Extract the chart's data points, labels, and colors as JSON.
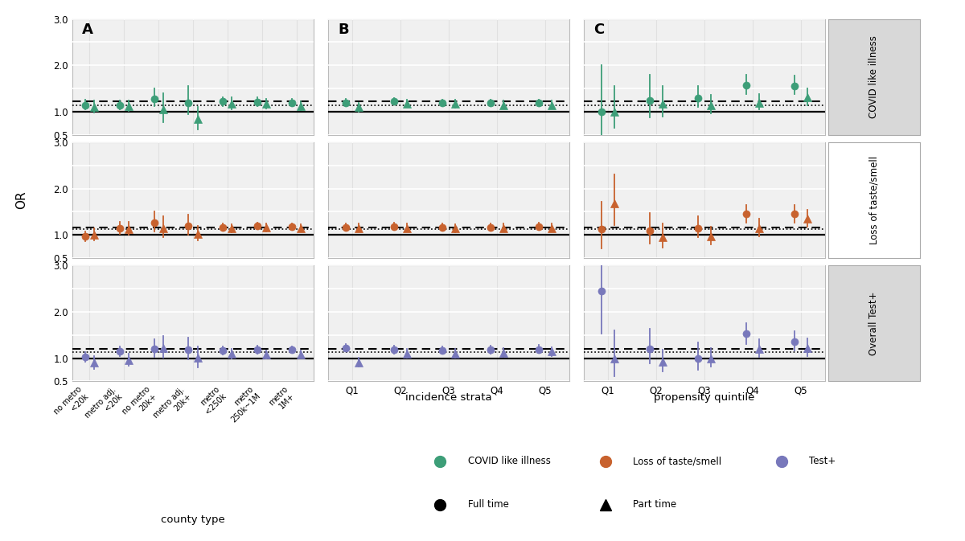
{
  "colors": {
    "green": "#3d9e78",
    "orange": "#c8622e",
    "purple": "#7878bb"
  },
  "dashed_line": {
    "green": 1.22,
    "orange": 1.17,
    "purple": 1.2
  },
  "dotted_line": {
    "green": 1.14,
    "orange": 1.12,
    "purple": 1.13
  },
  "panel_A": {
    "xlabel": "county type",
    "xticks": [
      "no metro\n<20k",
      "metro adj.\n<20k",
      "no metro\n20k+",
      "metro adj.\n20k+",
      "metro\n<250k",
      "metro\n250k~1M",
      "metro\n1M+"
    ],
    "green_full_y": [
      1.15,
      1.14,
      1.28,
      1.2,
      1.22,
      1.21,
      1.2
    ],
    "green_full_lo": [
      1.05,
      1.06,
      1.12,
      0.95,
      1.13,
      1.12,
      1.13
    ],
    "green_full_hi": [
      1.26,
      1.24,
      1.5,
      1.55,
      1.32,
      1.31,
      1.28
    ],
    "green_part_y": [
      1.1,
      1.12,
      1.05,
      0.84,
      1.17,
      1.17,
      1.12
    ],
    "green_part_lo": [
      0.98,
      1.02,
      0.78,
      0.63,
      1.05,
      1.07,
      1.03
    ],
    "green_part_hi": [
      1.24,
      1.24,
      1.4,
      1.1,
      1.31,
      1.28,
      1.22
    ],
    "orange_full_y": [
      0.97,
      1.15,
      1.27,
      1.2,
      1.17,
      1.19,
      1.18
    ],
    "orange_full_lo": [
      0.87,
      1.03,
      1.07,
      1.0,
      1.1,
      1.12,
      1.12
    ],
    "orange_full_hi": [
      1.08,
      1.29,
      1.5,
      1.44,
      1.25,
      1.27,
      1.25
    ],
    "orange_part_y": [
      1.0,
      1.13,
      1.15,
      1.02,
      1.14,
      1.16,
      1.15
    ],
    "orange_part_lo": [
      0.88,
      1.0,
      0.95,
      0.88,
      1.06,
      1.08,
      1.08
    ],
    "orange_part_hi": [
      1.14,
      1.28,
      1.4,
      1.2,
      1.23,
      1.25,
      1.23
    ],
    "purple_full_y": [
      1.02,
      1.14,
      1.2,
      1.18,
      1.16,
      1.18,
      1.19
    ],
    "purple_full_lo": [
      0.92,
      1.04,
      1.03,
      0.97,
      1.08,
      1.1,
      1.13
    ],
    "purple_full_hi": [
      1.13,
      1.25,
      1.4,
      1.44,
      1.25,
      1.27,
      1.26
    ],
    "purple_part_y": [
      0.9,
      0.95,
      1.22,
      1.01,
      1.09,
      1.08,
      1.08
    ],
    "purple_part_lo": [
      0.77,
      0.83,
      1.01,
      0.8,
      0.99,
      1.0,
      1.01
    ],
    "purple_part_hi": [
      1.05,
      1.09,
      1.48,
      1.26,
      1.2,
      1.17,
      1.16
    ]
  },
  "panel_B": {
    "xlabel": "incidence strata",
    "xticks": [
      "Q1",
      "Q2",
      "Q3",
      "Q4",
      "Q5"
    ],
    "green_full_y": [
      1.2,
      1.22,
      1.2,
      1.19,
      1.2
    ],
    "green_full_lo": [
      1.13,
      1.16,
      1.14,
      1.13,
      1.14
    ],
    "green_full_hi": [
      1.28,
      1.3,
      1.27,
      1.26,
      1.27
    ],
    "green_part_y": [
      1.1,
      1.18,
      1.17,
      1.15,
      1.15
    ],
    "green_part_lo": [
      1.01,
      1.1,
      1.09,
      1.07,
      1.07
    ],
    "green_part_hi": [
      1.2,
      1.27,
      1.26,
      1.24,
      1.24
    ],
    "orange_full_y": [
      1.17,
      1.18,
      1.17,
      1.16,
      1.18
    ],
    "orange_full_lo": [
      1.1,
      1.11,
      1.1,
      1.09,
      1.11
    ],
    "orange_full_hi": [
      1.25,
      1.26,
      1.25,
      1.24,
      1.26
    ],
    "orange_part_y": [
      1.15,
      1.15,
      1.14,
      1.15,
      1.15
    ],
    "orange_part_lo": [
      1.07,
      1.07,
      1.06,
      1.07,
      1.07
    ],
    "orange_part_hi": [
      1.24,
      1.24,
      1.23,
      1.24,
      1.24
    ],
    "purple_full_y": [
      1.22,
      1.18,
      1.17,
      1.18,
      1.19
    ],
    "purple_full_lo": [
      1.14,
      1.1,
      1.09,
      1.1,
      1.11
    ],
    "purple_full_hi": [
      1.31,
      1.27,
      1.26,
      1.27,
      1.28
    ],
    "purple_part_y": [
      0.91,
      1.1,
      1.1,
      1.12,
      1.14
    ],
    "purple_part_lo": [
      0.82,
      1.01,
      1.01,
      1.03,
      1.05
    ],
    "purple_part_hi": [
      1.01,
      1.2,
      1.2,
      1.22,
      1.24
    ]
  },
  "panel_C": {
    "xlabel": "propensity quintile",
    "xticks": [
      "Q1",
      "Q2",
      "Q3",
      "Q4",
      "Q5"
    ],
    "green_full_y": [
      1.0,
      1.25,
      1.3,
      1.58,
      1.56
    ],
    "green_full_lo": [
      0.5,
      0.88,
      1.1,
      1.38,
      1.38
    ],
    "green_full_hi": [
      2.0,
      1.8,
      1.55,
      1.8,
      1.78
    ],
    "green_part_y": [
      1.0,
      1.18,
      1.15,
      1.2,
      1.32
    ],
    "green_part_lo": [
      0.65,
      0.9,
      0.97,
      1.05,
      1.15
    ],
    "green_part_hi": [
      1.55,
      1.55,
      1.37,
      1.38,
      1.5
    ],
    "orange_full_y": [
      1.12,
      1.1,
      1.15,
      1.45,
      1.45
    ],
    "orange_full_lo": [
      0.72,
      0.82,
      0.95,
      1.27,
      1.27
    ],
    "orange_full_hi": [
      1.72,
      1.48,
      1.4,
      1.65,
      1.65
    ],
    "orange_part_y": [
      1.68,
      0.95,
      0.97,
      1.15,
      1.35
    ],
    "orange_part_lo": [
      1.22,
      0.73,
      0.8,
      0.97,
      1.18
    ],
    "orange_part_hi": [
      2.3,
      1.25,
      1.18,
      1.35,
      1.55
    ],
    "purple_full_y": [
      2.45,
      1.2,
      1.0,
      1.52,
      1.35
    ],
    "purple_full_lo": [
      1.52,
      0.88,
      0.75,
      1.3,
      1.16
    ],
    "purple_full_hi": [
      3.0,
      1.64,
      1.34,
      1.76,
      1.58
    ],
    "purple_part_y": [
      1.0,
      0.92,
      1.0,
      1.2,
      1.22
    ],
    "purple_part_lo": [
      0.62,
      0.72,
      0.82,
      1.03,
      1.05
    ],
    "purple_part_hi": [
      1.6,
      1.18,
      1.22,
      1.4,
      1.42
    ]
  },
  "row_labels": [
    "COVID like\nillness",
    "Loss of taste/\nsmell",
    "Overall\nTest+"
  ],
  "row_labels_display": [
    "COVID like illness",
    "Loss of taste/smell",
    "Overall Test+"
  ],
  "panel_labels": [
    "A",
    "B",
    "C"
  ],
  "ylim": [
    0.5,
    3.0
  ],
  "ytick_vals": [
    0.5,
    1.0,
    1.5,
    2.0,
    2.5,
    3.0
  ],
  "ytick_labels": [
    "0.5",
    "1.0",
    "",
    "2.0",
    "",
    "3.0"
  ],
  "ylabel": "OR",
  "bg_color": "#f0f0f0",
  "grid_color": "white",
  "legend_colors": [
    "#3d9e78",
    "#c8622e",
    "#7878bb"
  ],
  "legend_labels": [
    "COVID like illness",
    "Loss of taste/smell",
    "Test+"
  ]
}
